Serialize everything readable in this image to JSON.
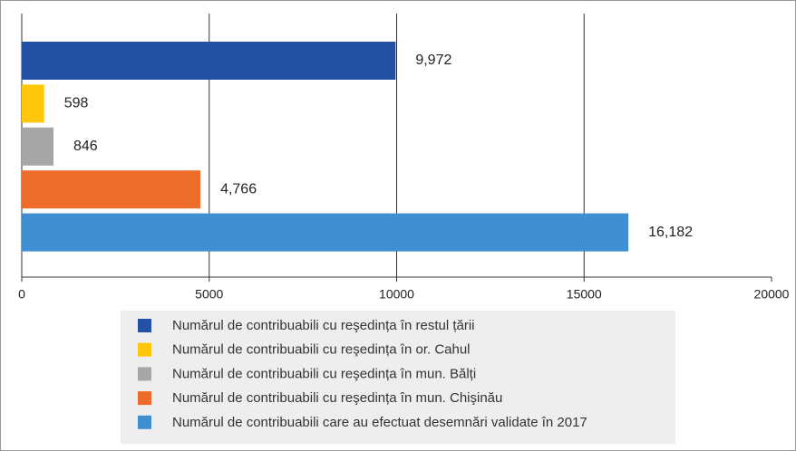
{
  "chart_data": {
    "type": "bar",
    "orientation": "horizontal",
    "categories": [
      "Numărul de contribuabili cu reşedința în restul țării",
      "Numărul de contribuabili cu reşedința în or. Cahul",
      "Numărul de contribuabili cu reşedința în mun. Bălți",
      "Numărul de contribuabili cu reşedința în mun. Chişinău",
      "Numărul de contribuabili care au efectuat desemnări validate în 2017"
    ],
    "values": [
      9972,
      598,
      846,
      4766,
      16182
    ],
    "value_labels": [
      "9,972",
      "598",
      "846",
      "4,766",
      "16,182"
    ],
    "colors": [
      "#2451a3",
      "#ffc60a",
      "#a6a6a6",
      "#ee6c29",
      "#3f8fd2"
    ],
    "xlim": [
      0,
      20000
    ],
    "xticks": [
      0,
      5000,
      10000,
      15000,
      20000
    ],
    "grid": true,
    "legend": "bottom"
  }
}
